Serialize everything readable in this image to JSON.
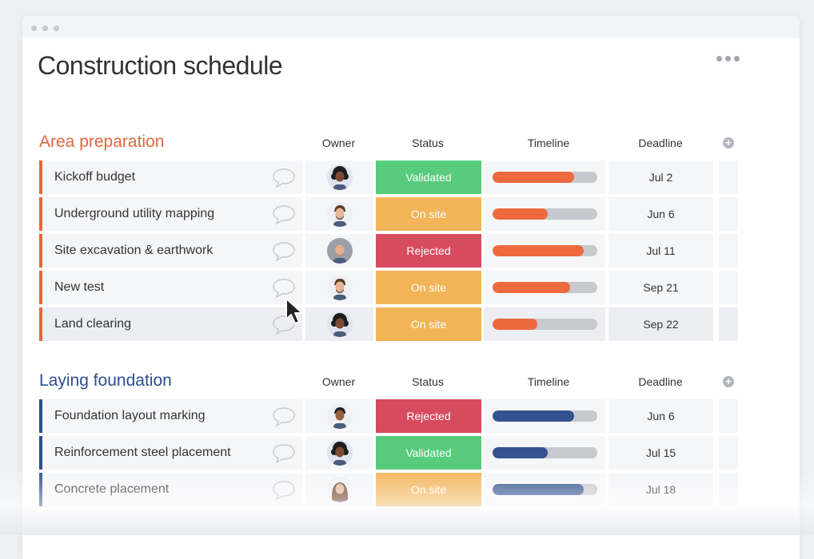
{
  "page": {
    "title": "Construction schedule"
  },
  "columns": {
    "owner": "Owner",
    "status": "Status",
    "timeline": "Timeline",
    "deadline": "Deadline"
  },
  "colors": {
    "group1": "#e2683c",
    "group2": "#2c4f8f",
    "validated": "#58cb7c",
    "on_site": "#f2b457",
    "rejected": "#d74b5f",
    "timeline_orange": "#ed6a3f",
    "timeline_blue": "#34528f",
    "timeline_track": "#c8c9ce"
  },
  "groups": [
    {
      "title": "Area preparation",
      "accent": "group1",
      "rows": [
        {
          "task": "Kickoff budget",
          "owner_icon": "avatar-curly-hair-icon",
          "status": "Validated",
          "status_color": "validated",
          "timeline_progress": 0.78,
          "deadline": "Jul 2"
        },
        {
          "task": "Underground utility mapping",
          "owner_icon": "avatar-beard-icon",
          "status": "On site",
          "status_color": "on_site",
          "timeline_progress": 0.53,
          "deadline": "Jun 6"
        },
        {
          "task": "Site excavation & earthwork",
          "owner_icon": "avatar-bald-icon",
          "status": "Rejected",
          "status_color": "rejected",
          "timeline_progress": 0.87,
          "deadline": "Jul 11"
        },
        {
          "task": "New test",
          "owner_icon": "avatar-beard-icon",
          "status": "On site",
          "status_color": "on_site",
          "timeline_progress": 0.74,
          "deadline": "Sep 21"
        },
        {
          "task": "Land clearing",
          "owner_icon": "avatar-curly-hair-icon",
          "status": "On site",
          "status_color": "on_site",
          "timeline_progress": 0.43,
          "deadline": "Sep 22"
        }
      ]
    },
    {
      "title": "Laying foundation",
      "accent": "group2",
      "rows": [
        {
          "task": "Foundation layout marking",
          "owner_icon": "avatar-dark-hair-icon",
          "status": "Rejected",
          "status_color": "rejected",
          "timeline_progress": 0.78,
          "deadline": "Jun 6"
        },
        {
          "task": "Reinforcement steel placement",
          "owner_icon": "avatar-curly-hair-icon",
          "status": "Validated",
          "status_color": "validated",
          "timeline_progress": 0.53,
          "deadline": "Jul 15"
        },
        {
          "task": "Concrete placement",
          "owner_icon": "avatar-woman-icon",
          "status": "On site",
          "status_color": "on_site",
          "timeline_progress": 0.87,
          "deadline": "Jul 18"
        }
      ]
    }
  ]
}
